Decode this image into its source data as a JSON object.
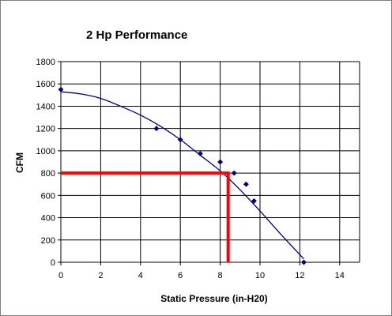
{
  "chart_data": {
    "type": "scatter",
    "title": "2 Hp Performance",
    "xlabel": "Static Pressure (in-H20)",
    "ylabel": "CFM",
    "xlim": [
      0,
      15
    ],
    "ylim": [
      0,
      1800
    ],
    "x_ticks": [
      0,
      2,
      4,
      6,
      8,
      10,
      12,
      14
    ],
    "y_ticks": [
      0,
      200,
      400,
      600,
      800,
      1000,
      1200,
      1400,
      1600,
      1800
    ],
    "grid": true,
    "legend": "none",
    "series": [
      {
        "type": "scatter",
        "marker": "diamond",
        "color": "#000080",
        "x": [
          0,
          4.8,
          6,
          7,
          8,
          8.7,
          9.3,
          9.7,
          12.2
        ],
        "y": [
          1550,
          1200,
          1100,
          975,
          900,
          800,
          700,
          550,
          0
        ]
      },
      {
        "type": "line",
        "description": "trendline",
        "color": "#000080",
        "x": [
          0,
          1,
          2,
          3,
          4,
          5,
          6,
          7,
          8,
          9,
          10,
          11,
          12.2
        ],
        "y": [
          1530,
          1510,
          1470,
          1400,
          1320,
          1220,
          1100,
          960,
          820,
          650,
          460,
          260,
          30
        ]
      }
    ],
    "annotations": [
      {
        "type": "operating-point-lines",
        "color": "#ff0000",
        "x": 8.4,
        "y": 800
      }
    ]
  }
}
